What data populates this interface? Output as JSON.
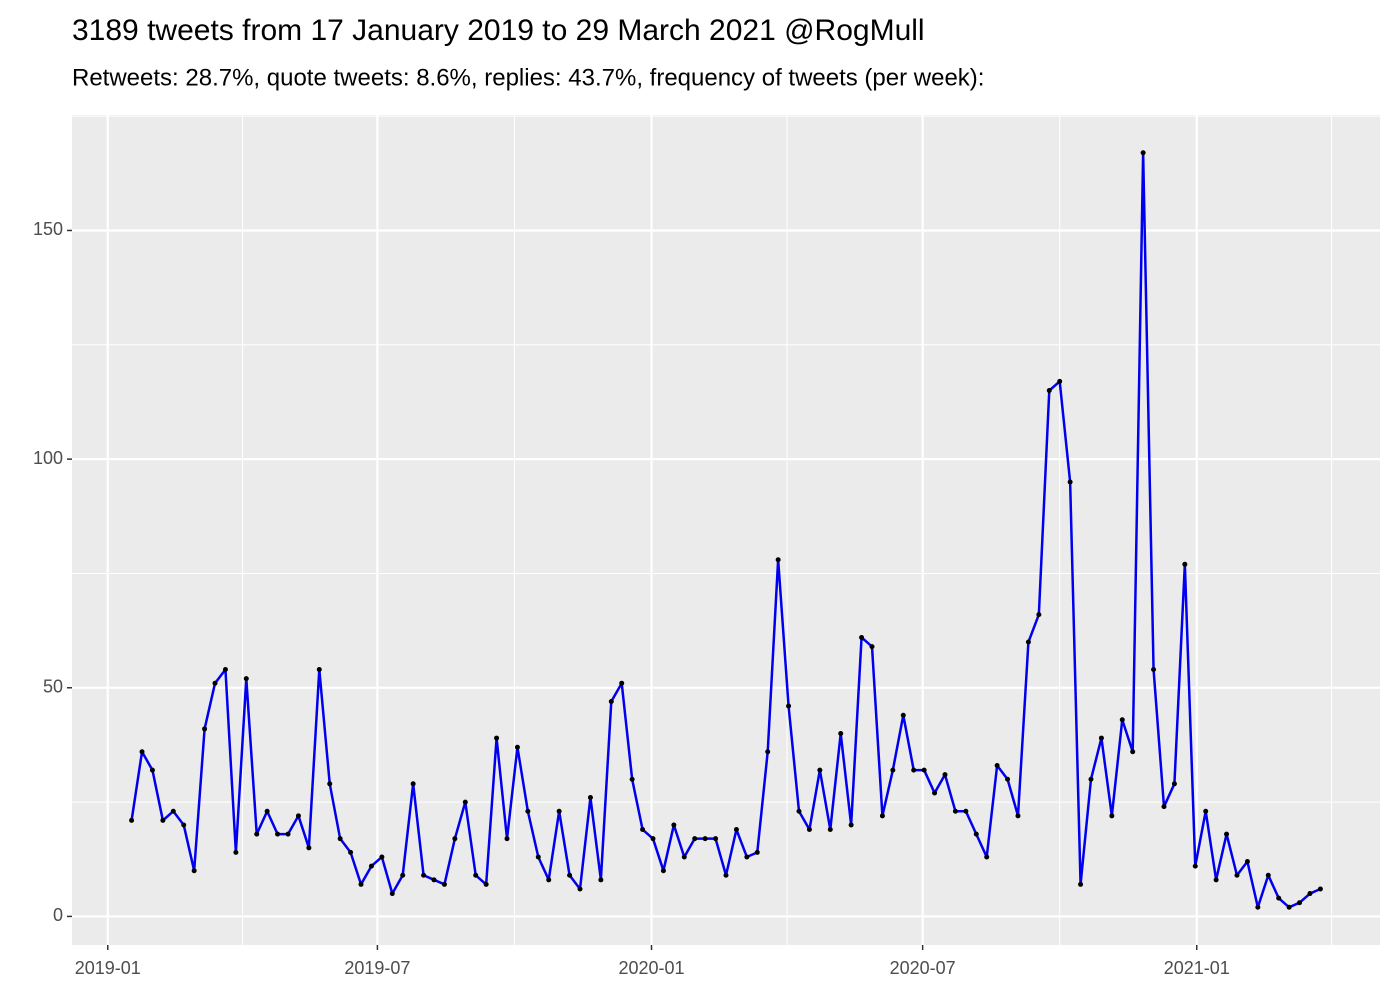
{
  "chart_data": {
    "type": "line",
    "title": "3189 tweets from 17 January 2019 to 29 March 2021 @RogMull",
    "subtitle": "Retweets: 28.7%, quote tweets: 8.6%, replies: 43.7%, frequency of tweets (per week):",
    "x_start": "2019-01-17",
    "x_step_days": 7,
    "values": [
      21,
      36,
      32,
      21,
      23,
      20,
      10,
      41,
      51,
      54,
      14,
      52,
      18,
      23,
      18,
      18,
      22,
      15,
      54,
      29,
      17,
      14,
      7,
      11,
      13,
      5,
      9,
      29,
      9,
      8,
      7,
      17,
      25,
      9,
      7,
      39,
      17,
      37,
      23,
      13,
      8,
      23,
      9,
      6,
      26,
      8,
      47,
      51,
      30,
      19,
      17,
      10,
      20,
      13,
      17,
      17,
      17,
      9,
      19,
      13,
      14,
      36,
      78,
      46,
      23,
      19,
      32,
      19,
      40,
      20,
      61,
      59,
      22,
      32,
      44,
      32,
      32,
      27,
      31,
      23,
      23,
      18,
      13,
      33,
      30,
      22,
      60,
      66,
      115,
      117,
      95,
      7,
      30,
      39,
      22,
      43,
      36,
      167,
      54,
      24,
      29,
      77,
      11,
      23,
      8,
      18,
      9,
      12,
      2,
      9,
      4,
      2,
      3,
      5,
      6
    ],
    "color": "#0000ee",
    "marker_color": "#000000",
    "xlim": [
      "2018-12-08",
      "2021-05-04"
    ],
    "xticks": [
      {
        "value": "2019-01-01",
        "label": "2019-01"
      },
      {
        "value": "2019-07-01",
        "label": "2019-07"
      },
      {
        "value": "2020-01-01",
        "label": "2020-01"
      },
      {
        "value": "2020-07-01",
        "label": "2020-07"
      },
      {
        "value": "2021-01-01",
        "label": "2021-01"
      }
    ],
    "ylim": [
      -6.25,
      175.25
    ],
    "yticks": [
      0,
      50,
      100,
      150
    ],
    "grid": true
  }
}
